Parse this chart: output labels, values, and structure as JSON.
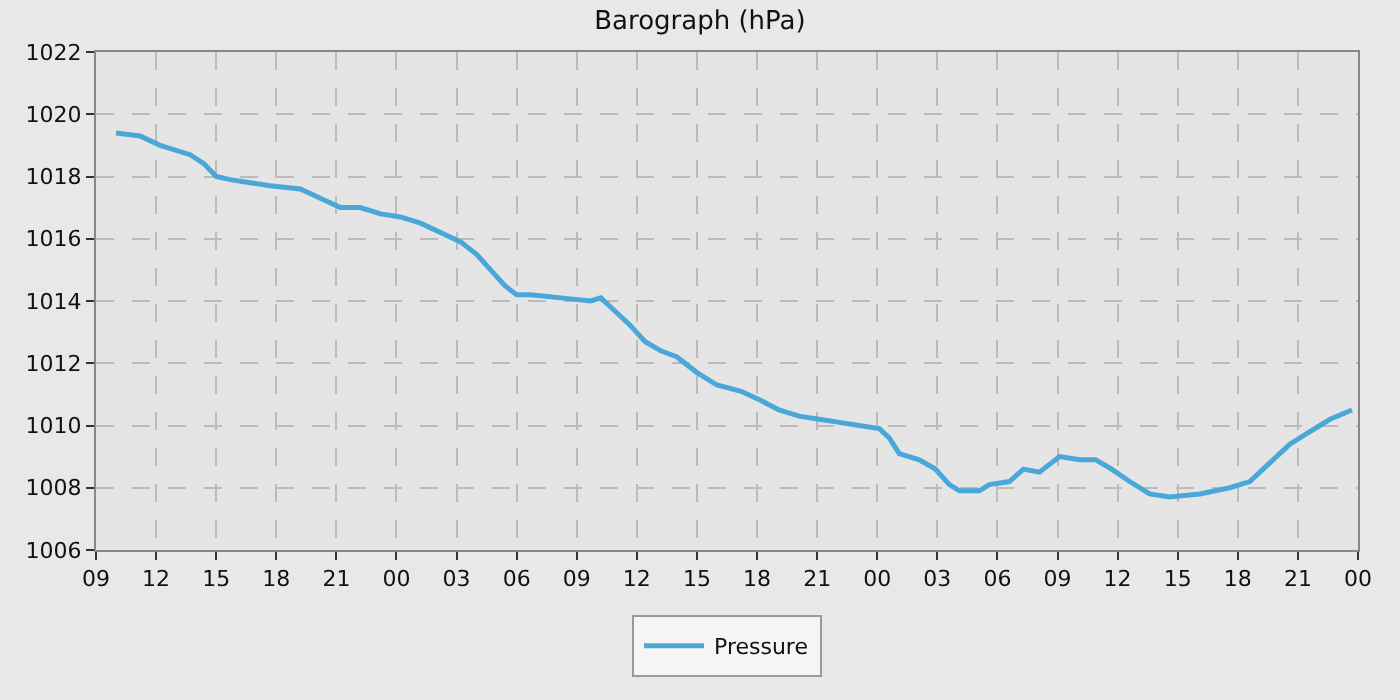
{
  "chart_data": {
    "type": "line",
    "title": "Barograph (hPa)",
    "x": [
      10,
      11.2,
      12.2,
      13.7,
      14.4,
      15,
      15.7,
      16.7,
      17.7,
      19.2,
      20.2,
      21.2,
      22.2,
      23.2,
      24.2,
      25.2,
      26.2,
      27.2,
      28,
      28.7,
      29.4,
      30,
      30.7,
      32.2,
      33.7,
      34.2,
      34.7,
      35.7,
      36.4,
      37.2,
      38,
      39,
      40,
      41.2,
      42.2,
      43.1,
      44.1,
      45.1,
      46.1,
      47.1,
      48.1,
      48.6,
      49.1,
      50.1,
      50.9,
      51.6,
      52.1,
      53.1,
      53.6,
      54.6,
      55.3,
      56.1,
      57.1,
      58.1,
      58.9,
      59.7,
      60.6,
      61.6,
      62.6,
      64.1,
      65.6,
      66.6,
      67.6,
      68.6,
      69.6,
      70.6,
      71.7
    ],
    "series": [
      {
        "name": "Pressure",
        "color": "#4aa8d8",
        "values": [
          1019.4,
          1019.3,
          1019.0,
          1018.7,
          1018.4,
          1018.0,
          1017.9,
          1017.8,
          1017.7,
          1017.6,
          1017.3,
          1017.0,
          1017.0,
          1016.8,
          1016.7,
          1016.5,
          1016.2,
          1015.9,
          1015.5,
          1015.0,
          1014.5,
          1014.2,
          1014.2,
          1014.1,
          1014.0,
          1014.1,
          1013.8,
          1013.2,
          1012.7,
          1012.4,
          1012.2,
          1011.7,
          1011.3,
          1011.1,
          1010.8,
          1010.5,
          1010.3,
          1010.2,
          1010.1,
          1010.0,
          1009.9,
          1009.6,
          1009.1,
          1008.9,
          1008.6,
          1008.1,
          1007.9,
          1007.9,
          1008.1,
          1008.2,
          1008.6,
          1008.5,
          1009.0,
          1008.9,
          1008.9,
          1008.6,
          1008.2,
          1007.8,
          1007.7,
          1007.8,
          1008.0,
          1008.2,
          1008.8,
          1009.4,
          1009.8,
          1010.2,
          1010.5
        ]
      }
    ],
    "xlim": [
      9,
      72
    ],
    "xticks": [
      {
        "value": 9,
        "label": "09"
      },
      {
        "value": 12,
        "label": "12"
      },
      {
        "value": 15,
        "label": "15"
      },
      {
        "value": 18,
        "label": "18"
      },
      {
        "value": 21,
        "label": "21"
      },
      {
        "value": 24,
        "label": "00"
      },
      {
        "value": 27,
        "label": "03"
      },
      {
        "value": 30,
        "label": "06"
      },
      {
        "value": 33,
        "label": "09"
      },
      {
        "value": 36,
        "label": "12"
      },
      {
        "value": 39,
        "label": "15"
      },
      {
        "value": 42,
        "label": "18"
      },
      {
        "value": 45,
        "label": "21"
      },
      {
        "value": 48,
        "label": "00"
      },
      {
        "value": 51,
        "label": "03"
      },
      {
        "value": 54,
        "label": "06"
      },
      {
        "value": 57,
        "label": "09"
      },
      {
        "value": 60,
        "label": "12"
      },
      {
        "value": 63,
        "label": "15"
      },
      {
        "value": 66,
        "label": "18"
      },
      {
        "value": 69,
        "label": "21"
      },
      {
        "value": 72,
        "label": "00"
      }
    ],
    "ylim": [
      1006,
      1022
    ],
    "yticks": [
      1006,
      1008,
      1010,
      1012,
      1014,
      1016,
      1018,
      1020,
      1022
    ],
    "grid": true,
    "legend": "bottom",
    "marker": "none",
    "line_style": "solid"
  }
}
